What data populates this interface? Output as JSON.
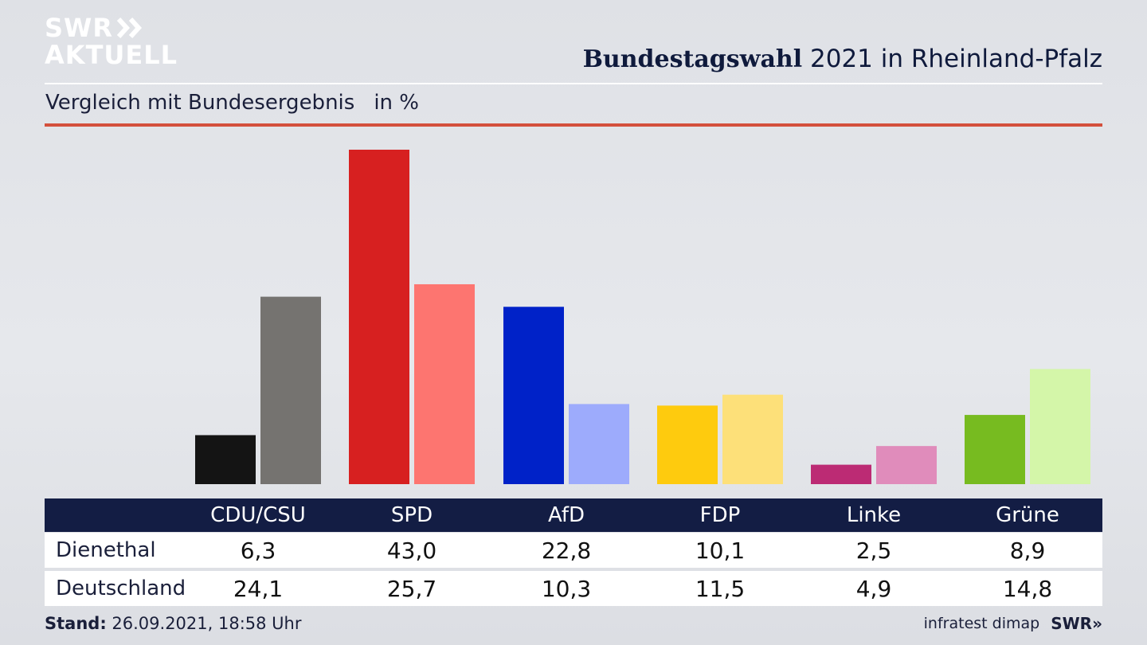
{
  "branding": {
    "logo_line1": "SWR",
    "logo_line2": "AKTUELL",
    "footer_logo": "SWR»"
  },
  "header": {
    "title_bold": "Bundestagswahl",
    "title_rest": " 2021 in Rheinland-Pfalz",
    "subtitle": "Vergleich mit Bundesergebnis",
    "unit": "in %"
  },
  "colors": {
    "header_bg": "#131d44",
    "accent_line": "#d4503c"
  },
  "chart_data": {
    "type": "bar",
    "categories": [
      "CDU/CSU",
      "SPD",
      "AfD",
      "FDP",
      "Linke",
      "Grüne"
    ],
    "series": [
      {
        "name": "Dienethal",
        "values": [
          6.3,
          43.0,
          22.8,
          10.1,
          2.5,
          8.9
        ],
        "colors": [
          "#141414",
          "#d72020",
          "#0022c8",
          "#fecb0e",
          "#bc2b74",
          "#77bb20"
        ]
      },
      {
        "name": "Deutschland",
        "values": [
          24.1,
          25.7,
          10.3,
          11.5,
          4.9,
          14.8
        ],
        "colors": [
          "#757370",
          "#fd7570",
          "#9dabfc",
          "#fde079",
          "#e08cbb",
          "#d4f6a9"
        ]
      }
    ],
    "ylim": [
      0,
      43
    ]
  },
  "table": {
    "rows": [
      {
        "label": "Dienethal",
        "values": [
          "6,3",
          "43,0",
          "22,8",
          "10,1",
          "2,5",
          "8,9"
        ]
      },
      {
        "label": "Deutschland",
        "values": [
          "24,1",
          "25,7",
          "10,3",
          "11,5",
          "4,9",
          "14,8"
        ]
      }
    ]
  },
  "footer": {
    "stand_label": "Stand:",
    "stand_value": " 26.09.2021, 18:58 Uhr",
    "source": "infratest dimap"
  }
}
